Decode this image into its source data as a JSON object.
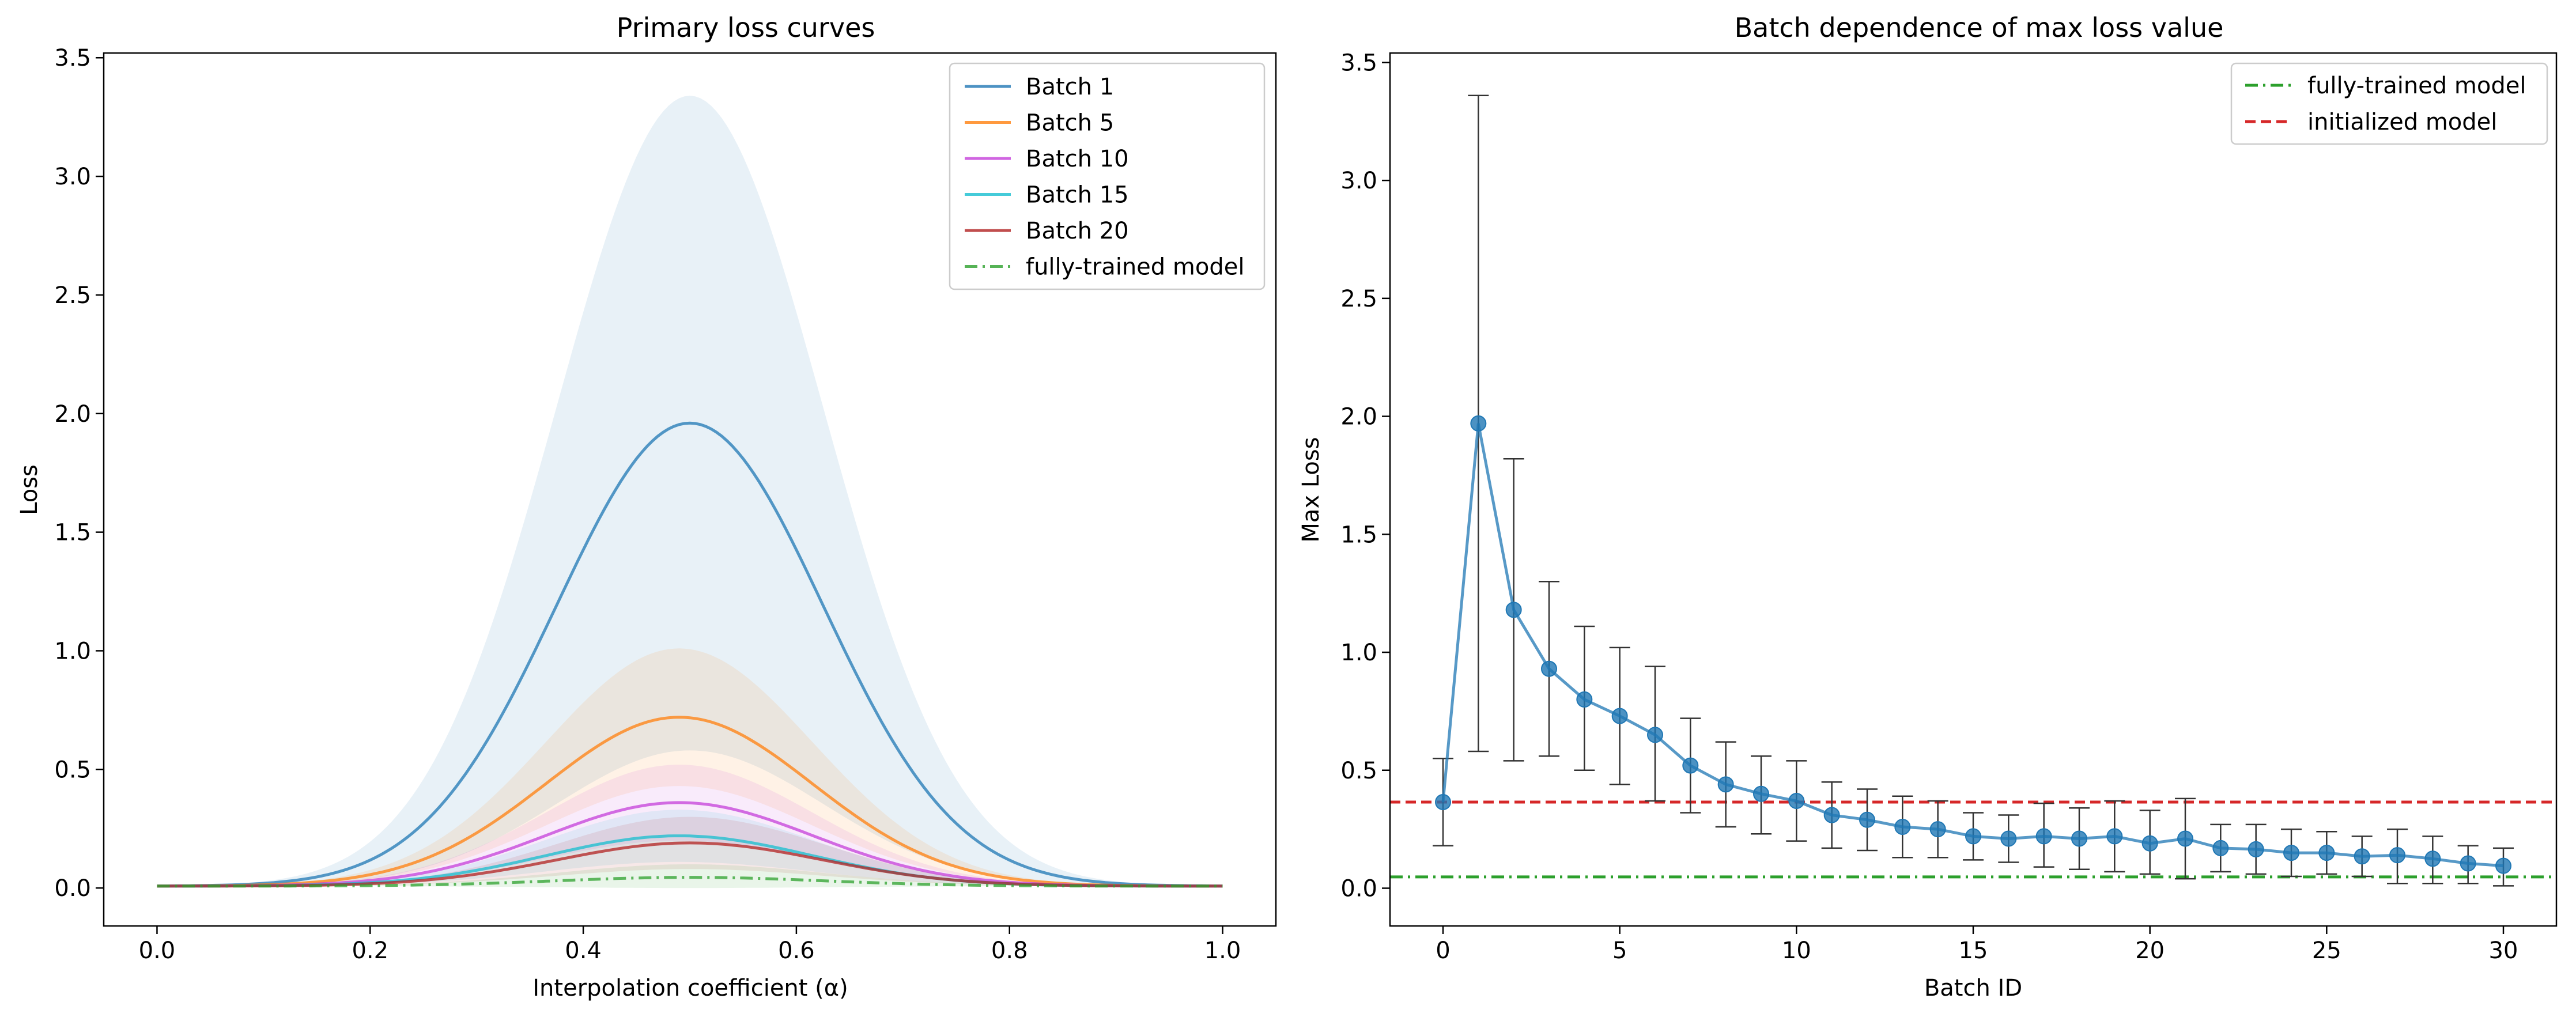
{
  "chart_data": [
    {
      "type": "line",
      "title": "Primary loss curves",
      "xlabel": "Interpolation coefficient (α)",
      "ylabel": "Loss",
      "xlim": [
        -0.05,
        1.05
      ],
      "ylim": [
        -0.16,
        3.52
      ],
      "xticks": [
        0.0,
        0.2,
        0.4,
        0.6,
        0.8,
        1.0
      ],
      "xtick_labels": [
        "0.0",
        "0.2",
        "0.4",
        "0.6",
        "0.8",
        "1.0"
      ],
      "yticks": [
        0.0,
        0.5,
        1.0,
        1.5,
        2.0,
        2.5,
        3.0,
        3.5
      ],
      "ytick_labels": [
        "0.0",
        "0.5",
        "1.0",
        "1.5",
        "2.0",
        "2.5",
        "3.0",
        "3.5"
      ],
      "legend_position": "top-right",
      "series": [
        {
          "name": "Batch 1",
          "color": "#1f77b4",
          "peak_x": 0.5,
          "peak": 1.96,
          "band_upper": 3.34,
          "band_lower": 0.58
        },
        {
          "name": "Batch 5",
          "color": "#ff7f0e",
          "peak_x": 0.49,
          "peak": 0.72,
          "band_upper": 1.01,
          "band_lower": 0.43
        },
        {
          "name": "Batch 10",
          "color": "#c43fd9",
          "peak_x": 0.49,
          "peak": 0.36,
          "band_upper": 0.52,
          "band_lower": 0.2
        },
        {
          "name": "Batch 15",
          "color": "#17becf",
          "peak_x": 0.49,
          "peak": 0.22,
          "band_upper": 0.33,
          "band_lower": 0.11
        },
        {
          "name": "Batch 20",
          "color": "#b22222",
          "peak_x": 0.5,
          "peak": 0.19,
          "band_upper": 0.3,
          "band_lower": 0.08
        },
        {
          "name": "fully-trained model",
          "color": "#2ca02c",
          "linestyle": "dashdot",
          "peak_x": 0.5,
          "peak": 0.045,
          "band_upper": 0.1,
          "band_lower": 0.0
        }
      ],
      "baseline": 0.008
    },
    {
      "type": "line",
      "title": "Batch dependence of max loss value",
      "xlabel": "Batch ID",
      "ylabel": "Max Loss",
      "xlim": [
        -1.5,
        31.5
      ],
      "ylim": [
        -0.16,
        3.54
      ],
      "xticks": [
        0,
        5,
        10,
        15,
        20,
        25,
        30
      ],
      "xtick_labels": [
        "0",
        "5",
        "10",
        "15",
        "20",
        "25",
        "30"
      ],
      "yticks": [
        0.0,
        0.5,
        1.0,
        1.5,
        2.0,
        2.5,
        3.0,
        3.5
      ],
      "ytick_labels": [
        "0.0",
        "0.5",
        "1.0",
        "1.5",
        "2.0",
        "2.5",
        "3.0",
        "3.5"
      ],
      "legend_position": "top-right",
      "x": [
        0,
        1,
        2,
        3,
        4,
        5,
        6,
        7,
        8,
        9,
        10,
        11,
        12,
        13,
        14,
        15,
        16,
        17,
        18,
        19,
        20,
        21,
        22,
        23,
        24,
        25,
        26,
        27,
        28,
        29,
        30
      ],
      "series": [
        {
          "color": "#1f77b4",
          "values": [
            0.365,
            1.97,
            1.18,
            0.93,
            0.8,
            0.73,
            0.65,
            0.52,
            0.44,
            0.4,
            0.37,
            0.31,
            0.29,
            0.26,
            0.25,
            0.22,
            0.21,
            0.22,
            0.21,
            0.22,
            0.19,
            0.21,
            0.17,
            0.165,
            0.15,
            0.15,
            0.135,
            0.14,
            0.125,
            0.105,
            0.095
          ],
          "err_low": [
            0.18,
            0.58,
            0.54,
            0.56,
            0.5,
            0.44,
            0.37,
            0.32,
            0.26,
            0.23,
            0.2,
            0.17,
            0.16,
            0.13,
            0.13,
            0.12,
            0.11,
            0.09,
            0.08,
            0.07,
            0.06,
            0.04,
            0.07,
            0.06,
            0.05,
            0.06,
            0.05,
            0.02,
            0.02,
            0.02,
            0.01
          ],
          "err_high": [
            0.55,
            3.36,
            1.82,
            1.3,
            1.11,
            1.02,
            0.94,
            0.72,
            0.62,
            0.56,
            0.54,
            0.45,
            0.42,
            0.39,
            0.37,
            0.32,
            0.31,
            0.36,
            0.34,
            0.37,
            0.33,
            0.38,
            0.27,
            0.27,
            0.25,
            0.24,
            0.22,
            0.25,
            0.22,
            0.18,
            0.17
          ]
        }
      ],
      "reference_lines": [
        {
          "name": "fully-trained model",
          "value": 0.048,
          "color": "#2ca02c",
          "linestyle": "dashdot"
        },
        {
          "name": "initialized model",
          "value": 0.365,
          "color": "#d62728",
          "linestyle": "dashed"
        }
      ]
    }
  ]
}
